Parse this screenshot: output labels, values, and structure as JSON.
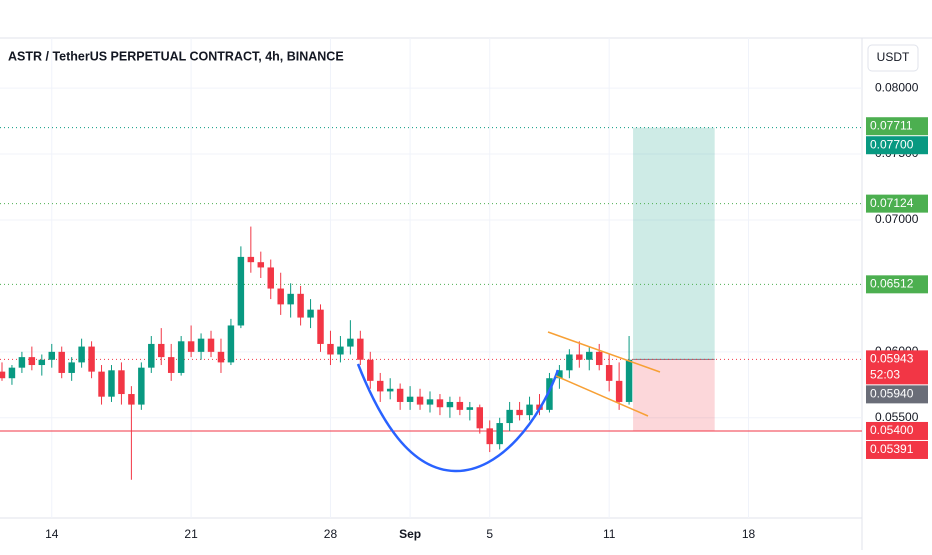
{
  "chart_data": {
    "type": "candlestick",
    "title": "ASTR / TetherUS PERPETUAL CONTRACT, 4h, BINANCE",
    "currency_button": "USDT",
    "x": [
      -2.5,
      -2,
      -1.5,
      -1,
      -0.5,
      0,
      0.5,
      1,
      1.5,
      2,
      2.5,
      3,
      3.5,
      4,
      4.5,
      5,
      5.5,
      6,
      6.5,
      7,
      7.5,
      8,
      8.5,
      9,
      9.5,
      10,
      10.5,
      11,
      11.5,
      12,
      12.5,
      13,
      13.5,
      14,
      14.5,
      15,
      15.5,
      16,
      16.5,
      17,
      17.5,
      18,
      18.5,
      19,
      19.5,
      20,
      20.5,
      21,
      21.5,
      22,
      22.5,
      23,
      23.5,
      24,
      24.5,
      25,
      25.5,
      26,
      26.5,
      27,
      27.5,
      28,
      28.5,
      29
    ],
    "open": [
      0.0585,
      0.058,
      0.0588,
      0.0596,
      0.059,
      0.0594,
      0.06,
      0.0584,
      0.0592,
      0.0604,
      0.0585,
      0.0566,
      0.0586,
      0.0568,
      0.056,
      0.0588,
      0.0606,
      0.0596,
      0.0584,
      0.0608,
      0.06,
      0.061,
      0.06,
      0.0592,
      0.062,
      0.0672,
      0.0668,
      0.0664,
      0.0648,
      0.0636,
      0.0644,
      0.0626,
      0.0632,
      0.0606,
      0.0598,
      0.0604,
      0.061,
      0.0594,
      0.0578,
      0.057,
      0.0572,
      0.0562,
      0.0566,
      0.056,
      0.0564,
      0.0558,
      0.0562,
      0.0556,
      0.0558,
      0.0542,
      0.053,
      0.0546,
      0.0556,
      0.0552,
      0.056,
      0.0556,
      0.058,
      0.0586,
      0.0598,
      0.0594,
      0.06,
      0.059,
      0.0578,
      0.0562
    ],
    "high": [
      0.0592,
      0.059,
      0.06,
      0.0604,
      0.0598,
      0.0606,
      0.0604,
      0.0596,
      0.061,
      0.0608,
      0.059,
      0.059,
      0.0592,
      0.0574,
      0.0592,
      0.0612,
      0.0618,
      0.0606,
      0.0612,
      0.062,
      0.0614,
      0.0616,
      0.061,
      0.0625,
      0.068,
      0.0695,
      0.0676,
      0.067,
      0.066,
      0.0652,
      0.065,
      0.064,
      0.0636,
      0.0616,
      0.0612,
      0.0624,
      0.0616,
      0.06,
      0.0584,
      0.058,
      0.0576,
      0.0574,
      0.0572,
      0.057,
      0.0568,
      0.0566,
      0.0566,
      0.0562,
      0.056,
      0.0548,
      0.055,
      0.0562,
      0.0562,
      0.0566,
      0.0568,
      0.0584,
      0.059,
      0.0602,
      0.0608,
      0.0604,
      0.0606,
      0.0598,
      0.0592,
      0.0612
    ],
    "low": [
      0.0578,
      0.0575,
      0.0584,
      0.0586,
      0.0582,
      0.0588,
      0.058,
      0.0578,
      0.0588,
      0.058,
      0.056,
      0.0562,
      0.056,
      0.0503,
      0.0556,
      0.0584,
      0.059,
      0.0578,
      0.0582,
      0.0596,
      0.0594,
      0.0596,
      0.0584,
      0.059,
      0.0618,
      0.066,
      0.0656,
      0.064,
      0.0628,
      0.0626,
      0.062,
      0.0618,
      0.06,
      0.059,
      0.0592,
      0.0598,
      0.059,
      0.0572,
      0.0562,
      0.0564,
      0.0556,
      0.0556,
      0.0556,
      0.0554,
      0.0552,
      0.055,
      0.0552,
      0.0548,
      0.0538,
      0.0524,
      0.0526,
      0.054,
      0.0548,
      0.0548,
      0.0552,
      0.0554,
      0.0572,
      0.058,
      0.0588,
      0.0586,
      0.0586,
      0.057,
      0.0556,
      0.056
    ],
    "close": [
      0.058,
      0.0588,
      0.0596,
      0.059,
      0.0594,
      0.06,
      0.0584,
      0.0592,
      0.0604,
      0.0585,
      0.0566,
      0.0586,
      0.0568,
      0.056,
      0.0588,
      0.0606,
      0.0596,
      0.0584,
      0.0608,
      0.06,
      0.061,
      0.06,
      0.0592,
      0.062,
      0.0672,
      0.0668,
      0.0664,
      0.0648,
      0.0636,
      0.0644,
      0.0626,
      0.0632,
      0.0606,
      0.0598,
      0.0604,
      0.061,
      0.0594,
      0.0578,
      0.057,
      0.0572,
      0.0562,
      0.0566,
      0.056,
      0.0564,
      0.0558,
      0.0562,
      0.0556,
      0.0558,
      0.0542,
      0.053,
      0.0546,
      0.0556,
      0.0552,
      0.056,
      0.0556,
      0.058,
      0.0586,
      0.0598,
      0.0594,
      0.06,
      0.059,
      0.0578,
      0.0562,
      0.0594
    ],
    "up_color": "#089981",
    "down_color": "#f23645",
    "xlim": [
      -2.6,
      40.7
    ],
    "xticks": [
      {
        "value": 0,
        "label": "14"
      },
      {
        "value": 7,
        "label": "21"
      },
      {
        "value": 14,
        "label": "28"
      },
      {
        "value": 18,
        "label": "Sep"
      },
      {
        "value": 22,
        "label": "5"
      },
      {
        "value": 28,
        "label": "11"
      },
      {
        "value": 35,
        "label": "18"
      }
    ],
    "ylim": [
      0.0474,
      0.0838
    ],
    "yticks": [
      {
        "value": 0.08,
        "label": "0.08000"
      },
      {
        "value": 0.075,
        "label": "0.07500"
      },
      {
        "value": 0.07,
        "label": "0.07000"
      },
      {
        "value": 0.06,
        "label": "0.06000"
      },
      {
        "value": 0.055,
        "label": "0.05500"
      }
    ],
    "grid": true,
    "price_labels": [
      {
        "value": 0.07711,
        "label": "0.07711",
        "color": "#4caf50"
      },
      {
        "value": 0.077,
        "label": "0.07700",
        "color": "#089981",
        "line": "dotted"
      },
      {
        "value": 0.07124,
        "label": "0.07124",
        "color": "#4caf50",
        "line": "dotted"
      },
      {
        "value": 0.06512,
        "label": "0.06512",
        "color": "#4caf50",
        "line": "dotted"
      },
      {
        "value": 0.05943,
        "label": "0.05943",
        "color": "#f23645",
        "line": "dotted",
        "countdown": "52:03"
      },
      {
        "value": 0.0594,
        "label": "0.05940",
        "color": "#6a6d78"
      },
      {
        "value": 0.054,
        "label": "0.05400",
        "color": "#f23645",
        "line": "solid"
      },
      {
        "value": 0.05391,
        "label": "0.05391",
        "color": "#f23645"
      }
    ],
    "position": {
      "x_start": 29.2,
      "x_end": 33.3,
      "entry": 0.05943,
      "target": 0.077,
      "stop": 0.054
    }
  }
}
